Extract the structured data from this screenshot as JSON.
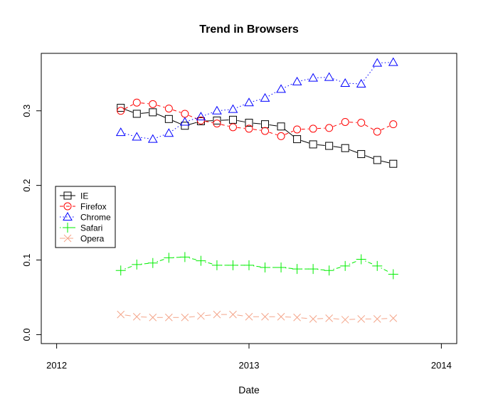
{
  "chart_data": {
    "type": "line",
    "title": "Trend in Browsers",
    "xlabel": "Date",
    "ylabel": "",
    "x": [
      "2012-05",
      "2012-06",
      "2012-07",
      "2012-08",
      "2012-09",
      "2012-10",
      "2012-11",
      "2012-12",
      "2013-01",
      "2013-02",
      "2013-03",
      "2013-04",
      "2013-05",
      "2013-06",
      "2013-07",
      "2013-08",
      "2013-09",
      "2013-10"
    ],
    "xlim": [
      2011.92,
      2014.08
    ],
    "ylim": [
      -0.012,
      0.377
    ],
    "xticks": [
      "2012",
      "2013",
      "2014"
    ],
    "yticks": [
      "0.0",
      "0.1",
      "0.2",
      "0.3"
    ],
    "legend_position": "left",
    "series": [
      {
        "name": "IE",
        "color": "#000000",
        "dash": "",
        "marker": "square",
        "values": [
          0.304,
          0.296,
          0.298,
          0.289,
          0.28,
          0.286,
          0.287,
          0.288,
          0.284,
          0.282,
          0.279,
          0.262,
          0.255,
          0.253,
          0.25,
          0.242,
          0.234,
          0.229
        ]
      },
      {
        "name": "Firefox",
        "color": "#ff0000",
        "dash": "5,4",
        "marker": "circle",
        "values": [
          0.3,
          0.311,
          0.309,
          0.303,
          0.296,
          0.287,
          0.283,
          0.278,
          0.276,
          0.273,
          0.266,
          0.275,
          0.276,
          0.277,
          0.285,
          0.284,
          0.272,
          0.282
        ]
      },
      {
        "name": "Chrome",
        "color": "#0000ff",
        "dash": "1.5,3",
        "marker": "triangle",
        "values": [
          0.271,
          0.265,
          0.262,
          0.27,
          0.285,
          0.292,
          0.3,
          0.302,
          0.311,
          0.317,
          0.329,
          0.339,
          0.344,
          0.345,
          0.337,
          0.336,
          0.364,
          0.365
        ]
      },
      {
        "name": "Safari",
        "color": "#00ee00",
        "dash": "1.5,3,6,3",
        "marker": "plus",
        "values": [
          0.086,
          0.094,
          0.096,
          0.103,
          0.104,
          0.099,
          0.093,
          0.093,
          0.093,
          0.09,
          0.09,
          0.088,
          0.088,
          0.086,
          0.092,
          0.101,
          0.092,
          0.081
        ]
      },
      {
        "name": "Opera",
        "color": "#f4a58a",
        "dash": "8,3",
        "marker": "cross",
        "values": [
          0.027,
          0.024,
          0.023,
          0.023,
          0.023,
          0.025,
          0.027,
          0.027,
          0.024,
          0.024,
          0.024,
          0.023,
          0.021,
          0.022,
          0.02,
          0.021,
          0.021,
          0.022
        ]
      }
    ]
  }
}
